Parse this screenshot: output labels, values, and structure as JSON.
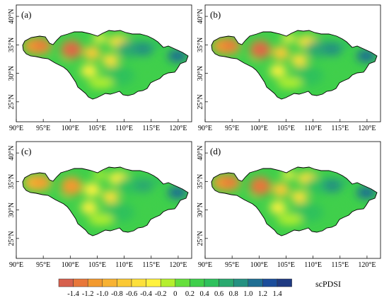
{
  "panels": [
    {
      "label": "(a)",
      "variant": 0
    },
    {
      "label": "(b)",
      "variant": 1
    },
    {
      "label": "(c)",
      "variant": 2
    },
    {
      "label": "(d)",
      "variant": 3
    }
  ],
  "axes": {
    "lon_ticks": [
      "90°E",
      "95°E",
      "100°E",
      "105°E",
      "110°E",
      "115°E",
      "120°E"
    ],
    "lat_ticks": [
      "40°N",
      "35°N",
      "30°N",
      "25°N"
    ],
    "lon_range": [
      90,
      122.5
    ],
    "lat_range": [
      21.5,
      42
    ]
  },
  "legend": {
    "title": "scPDSI",
    "labels": [
      "-1.4",
      "-1.2",
      "-1.0",
      "-0.8",
      "-0.6",
      "-0.4",
      "-0.2",
      "0",
      "0.2",
      "0.4",
      "0.6",
      "0.8",
      "1.0",
      "1.2",
      "1.4"
    ],
    "colors": [
      "#d6604d",
      "#e8773a",
      "#f39a2f",
      "#f8b232",
      "#fbc935",
      "#fde03b",
      "#fff23e",
      "#b5ef2e",
      "#66df3c",
      "#3fcf4b",
      "#2ec15c",
      "#2aa96f",
      "#249181",
      "#1f6e93",
      "#1b4d9b",
      "#1f3a82"
    ]
  }
}
